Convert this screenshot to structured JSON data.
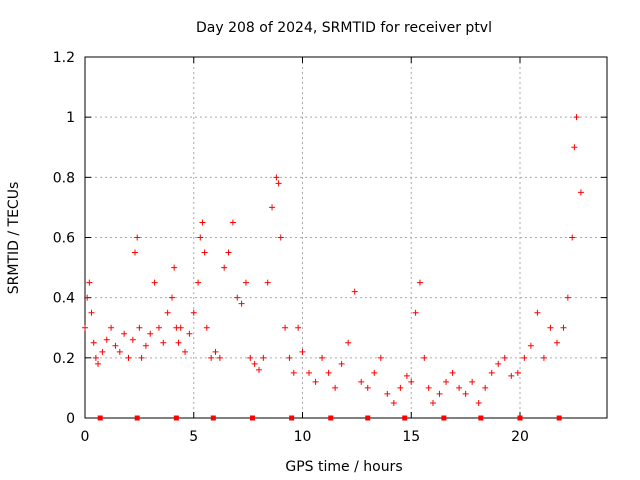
{
  "chart_data": {
    "type": "scatter",
    "title": "Day 208 of 2024, SRMTID for receiver ptvl",
    "xlabel": "GPS time / hours",
    "ylabel": "SRMTID / TECUs",
    "xlim": [
      0,
      24
    ],
    "ylim": [
      0,
      1.2
    ],
    "x_ticks": [
      0,
      5,
      10,
      15,
      20
    ],
    "x_tick_labels": [
      "0",
      "5",
      "10",
      "15",
      "20"
    ],
    "y_ticks": [
      0,
      0.2,
      0.4,
      0.6,
      0.8,
      1.0,
      1.2
    ],
    "y_tick_labels": [
      "0",
      "0.2",
      "0.4",
      "0.6",
      "0.8",
      "1",
      "1.2"
    ],
    "grid": true,
    "marker": "+",
    "series_color": "#ff0000",
    "series": [
      {
        "name": "SRMTID",
        "x": [
          0.0,
          0.1,
          0.2,
          0.3,
          0.4,
          0.5,
          0.6,
          0.8,
          1.0,
          1.2,
          1.4,
          1.6,
          1.8,
          2.0,
          2.2,
          2.3,
          2.4,
          2.5,
          2.6,
          2.8,
          3.0,
          3.2,
          3.4,
          3.6,
          3.8,
          4.0,
          4.1,
          4.2,
          4.3,
          4.4,
          4.6,
          4.8,
          5.0,
          5.2,
          5.3,
          5.4,
          5.5,
          5.6,
          5.8,
          6.0,
          6.2,
          6.4,
          6.6,
          6.8,
          7.0,
          7.2,
          7.4,
          7.6,
          7.8,
          8.0,
          8.2,
          8.4,
          8.6,
          8.8,
          8.9,
          9.0,
          9.2,
          9.4,
          9.6,
          9.8,
          10.0,
          10.3,
          10.6,
          10.9,
          11.2,
          11.5,
          11.8,
          12.1,
          12.4,
          12.7,
          13.0,
          13.3,
          13.6,
          13.9,
          14.2,
          14.5,
          14.8,
          15.0,
          15.2,
          15.4,
          15.6,
          15.8,
          16.0,
          16.3,
          16.6,
          16.9,
          17.2,
          17.5,
          17.8,
          18.1,
          18.4,
          18.7,
          19.0,
          19.3,
          19.6,
          19.9,
          20.2,
          20.5,
          20.8,
          21.1,
          21.4,
          21.7,
          22.0,
          22.2,
          22.4,
          22.5,
          22.6,
          22.8
        ],
        "y": [
          0.3,
          0.4,
          0.45,
          0.35,
          0.25,
          0.2,
          0.18,
          0.22,
          0.26,
          0.3,
          0.24,
          0.22,
          0.28,
          0.2,
          0.26,
          0.55,
          0.6,
          0.3,
          0.2,
          0.24,
          0.28,
          0.45,
          0.3,
          0.25,
          0.35,
          0.4,
          0.5,
          0.3,
          0.25,
          0.3,
          0.22,
          0.28,
          0.35,
          0.45,
          0.6,
          0.65,
          0.55,
          0.3,
          0.2,
          0.22,
          0.2,
          0.5,
          0.55,
          0.65,
          0.4,
          0.38,
          0.45,
          0.2,
          0.18,
          0.16,
          0.2,
          0.45,
          0.7,
          0.8,
          0.78,
          0.6,
          0.3,
          0.2,
          0.15,
          0.3,
          0.22,
          0.15,
          0.12,
          0.2,
          0.15,
          0.1,
          0.18,
          0.25,
          0.42,
          0.12,
          0.1,
          0.15,
          0.2,
          0.08,
          0.05,
          0.1,
          0.14,
          0.12,
          0.35,
          0.45,
          0.2,
          0.1,
          0.05,
          0.08,
          0.12,
          0.15,
          0.1,
          0.08,
          0.12,
          0.05,
          0.1,
          0.15,
          0.18,
          0.2,
          0.14,
          0.15,
          0.2,
          0.24,
          0.35,
          0.2,
          0.3,
          0.25,
          0.3,
          0.4,
          0.6,
          0.9,
          1.0,
          0.75
        ]
      }
    ],
    "zero_markers_x": [
      0.7,
      2.4,
      4.2,
      5.9,
      7.7,
      9.5,
      11.3,
      13.0,
      14.7,
      16.5,
      18.2,
      20.0,
      21.8
    ]
  }
}
